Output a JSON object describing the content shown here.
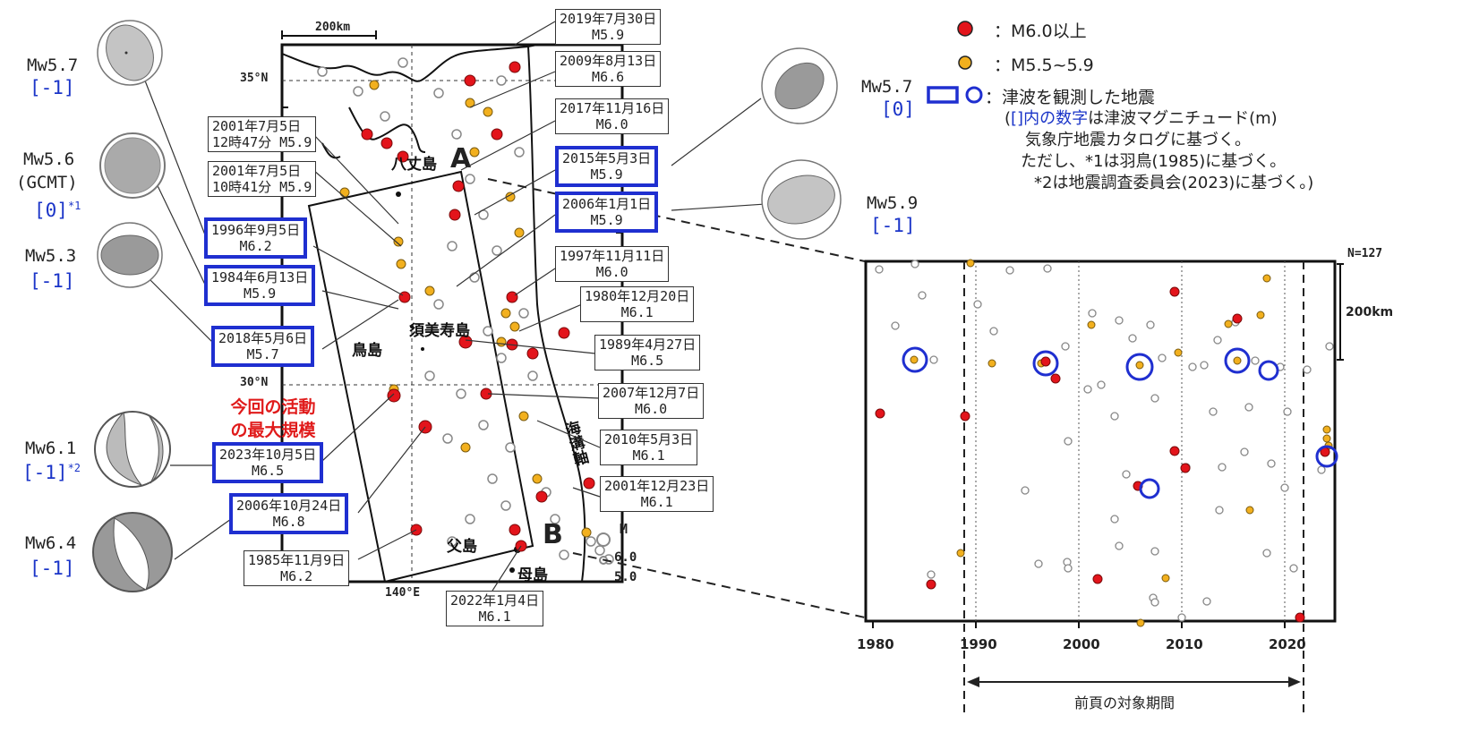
{
  "map": {
    "scale_label": "200km",
    "lat_labels": [
      "35°N",
      "30°N"
    ],
    "lon_label": "140°E",
    "point_A": "A",
    "point_B": "B",
    "places": {
      "hachijo": "八丈島",
      "sumisu": "須美寿島",
      "torishima": "鳥島",
      "chichijima": "父島",
      "hahajima": "母島",
      "trench_axis": "海溝軸"
    },
    "mag_legend": {
      "title": "M",
      "v1": "6.0",
      "v2": "5.0"
    }
  },
  "events": [
    {
      "id": "e2019",
      "date": "2019年7月30日",
      "mag": "M5.9",
      "tsunami": false
    },
    {
      "id": "e2009",
      "date": "2009年8月13日",
      "mag": "M6.6",
      "tsunami": false
    },
    {
      "id": "e2017",
      "date": "2017年11月16日",
      "mag": "M6.0",
      "tsunami": false
    },
    {
      "id": "e2001a",
      "date": "2001年7月5日",
      "mag": "12時47分 M5.9",
      "tsunami": false
    },
    {
      "id": "e2001b",
      "date": "2001年7月5日",
      "mag": "10時41分 M5.9",
      "tsunami": false
    },
    {
      "id": "e2015",
      "date": "2015年5月3日",
      "mag": "M5.9",
      "tsunami": true
    },
    {
      "id": "e2006a",
      "date": "2006年1月1日",
      "mag": "M5.9",
      "tsunami": true
    },
    {
      "id": "e1997",
      "date": "1997年11月11日",
      "mag": "M6.0",
      "tsunami": false
    },
    {
      "id": "e1996",
      "date": "1996年9月5日",
      "mag": "M6.2",
      "tsunami": true
    },
    {
      "id": "e1980",
      "date": "1980年12月20日",
      "mag": "M6.1",
      "tsunami": false
    },
    {
      "id": "e1984",
      "date": "1984年6月13日",
      "mag": "M5.9",
      "tsunami": true
    },
    {
      "id": "e1989",
      "date": "1989年4月27日",
      "mag": "M6.5",
      "tsunami": false
    },
    {
      "id": "e2018",
      "date": "2018年5月6日",
      "mag": "M5.7",
      "tsunami": true
    },
    {
      "id": "e2007",
      "date": "2007年12月7日",
      "mag": "M6.0",
      "tsunami": false
    },
    {
      "id": "e2010",
      "date": "2010年5月3日",
      "mag": "M6.1",
      "tsunami": false
    },
    {
      "id": "e2023",
      "date": "2023年10月5日",
      "mag": "M6.5",
      "tsunami": true
    },
    {
      "id": "e2001c",
      "date": "2001年12月23日",
      "mag": "M6.1",
      "tsunami": false
    },
    {
      "id": "e2006b",
      "date": "2006年10月24日",
      "mag": "M6.8",
      "tsunami": true
    },
    {
      "id": "e1985",
      "date": "1985年11月9日",
      "mag": "M6.2",
      "tsunami": false
    },
    {
      "id": "e2022",
      "date": "2022年1月4日",
      "mag": "M6.1",
      "tsunami": false
    }
  ],
  "largest_note": [
    "今回の活動",
    "の最大規模"
  ],
  "mechanisms": [
    {
      "mw": "Mw5.7",
      "tsunami_m": "[-1]",
      "sup": ""
    },
    {
      "mw": "Mw5.6",
      "sub": "(GCMT)",
      "tsunami_m": "[0]",
      "sup": "*1"
    },
    {
      "mw": "Mw5.3",
      "tsunami_m": "[-1]",
      "sup": ""
    },
    {
      "mw": "Mw6.1",
      "tsunami_m": "[-1]",
      "sup": "*2"
    },
    {
      "mw": "Mw6.4",
      "tsunami_m": "[-1]",
      "sup": ""
    },
    {
      "mw": "Mw5.7",
      "tsunami_m": "[0]",
      "sup": ""
    },
    {
      "mw": "Mw5.9",
      "tsunami_m": "[-1]",
      "sup": ""
    }
  ],
  "legend": {
    "red": "：M6.0以上",
    "orange": "：M5.5~5.9",
    "tsunami": "：津波を観測した地震",
    "note_open": "(",
    "note_highlight": "[]内の数字",
    "note_rest": "は津波マグニチュード(m)",
    "note2": "気象庁地震カタログに基づく。",
    "note3": "ただし、*1は羽鳥(1985)に基づく。",
    "note4": "*2は地震調査委員会(2023)に基づく。)"
  },
  "timeline": {
    "n_label": "N=127",
    "scale_label": "200km",
    "x_ticks": [
      "1980",
      "1990",
      "2000",
      "2010",
      "2020"
    ],
    "period_label": "前頁の対象期間"
  },
  "colors": {
    "red": "#e3141b",
    "orange": "#f2b01e",
    "tsunami": "#1f2fd0"
  }
}
